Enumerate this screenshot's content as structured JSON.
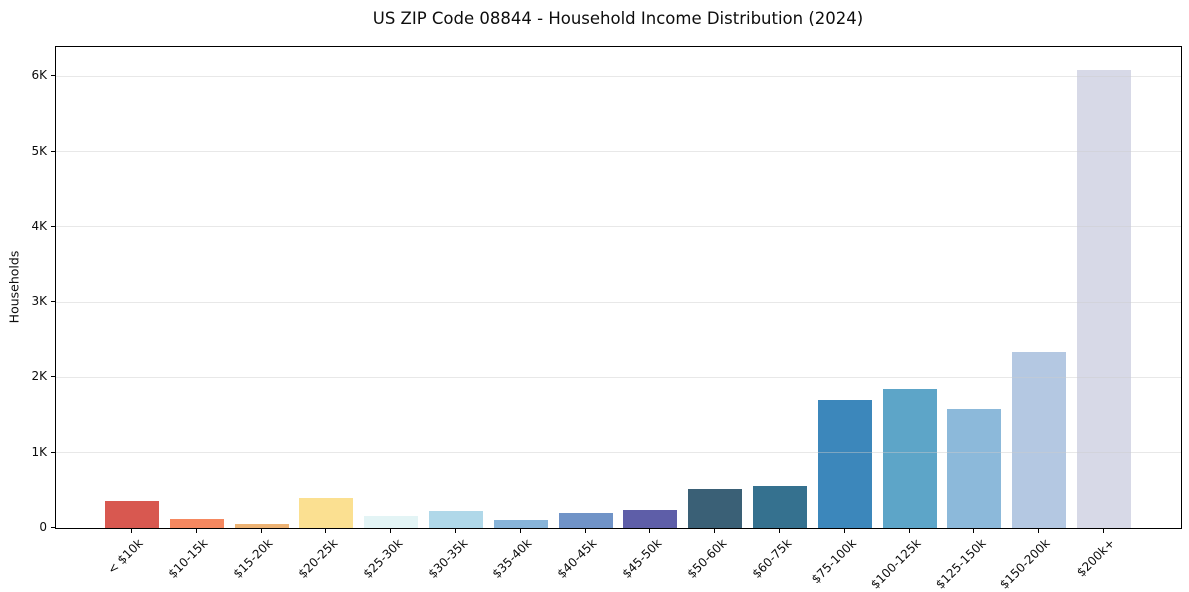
{
  "chart_data": {
    "type": "bar",
    "title": "US ZIP Code 08844 - Household Income Distribution (2024)",
    "xlabel": "",
    "ylabel": "Households",
    "categories": [
      "< $10k",
      "$10-15k",
      "$15-20k",
      "$20-25k",
      "$25-30k",
      "$30-35k",
      "$35-40k",
      "$40-45k",
      "$45-50k",
      "$50-60k",
      "$60-75k",
      "$75-100k",
      "$100-125k",
      "$125-150k",
      "$150-200k",
      "$200k+"
    ],
    "values": [
      355,
      125,
      50,
      405,
      160,
      230,
      100,
      205,
      245,
      520,
      560,
      1705,
      1850,
      1585,
      2335,
      6090
    ],
    "bar_colors": [
      "#d85850",
      "#f58860",
      "#edb374",
      "#fbe091",
      "#e3f4f5",
      "#b0d8e9",
      "#88b4d9",
      "#7093c7",
      "#5e5ea8",
      "#3a6076",
      "#35718f",
      "#3c87bb",
      "#5da5c8",
      "#8cb9da",
      "#b4c8e2",
      "#d7d9e7"
    ],
    "yticks": [
      {
        "value": 0,
        "label": "0"
      },
      {
        "value": 1000,
        "label": "1K"
      },
      {
        "value": 2000,
        "label": "2K"
      },
      {
        "value": 3000,
        "label": "3K"
      },
      {
        "value": 4000,
        "label": "4K"
      },
      {
        "value": 5000,
        "label": "5K"
      },
      {
        "value": 6000,
        "label": "6K"
      }
    ],
    "ylim": [
      0,
      6390
    ],
    "grid": "horizontal",
    "grid_color": "#e9e9e9",
    "axis_color": "#000000",
    "legend": "none"
  }
}
